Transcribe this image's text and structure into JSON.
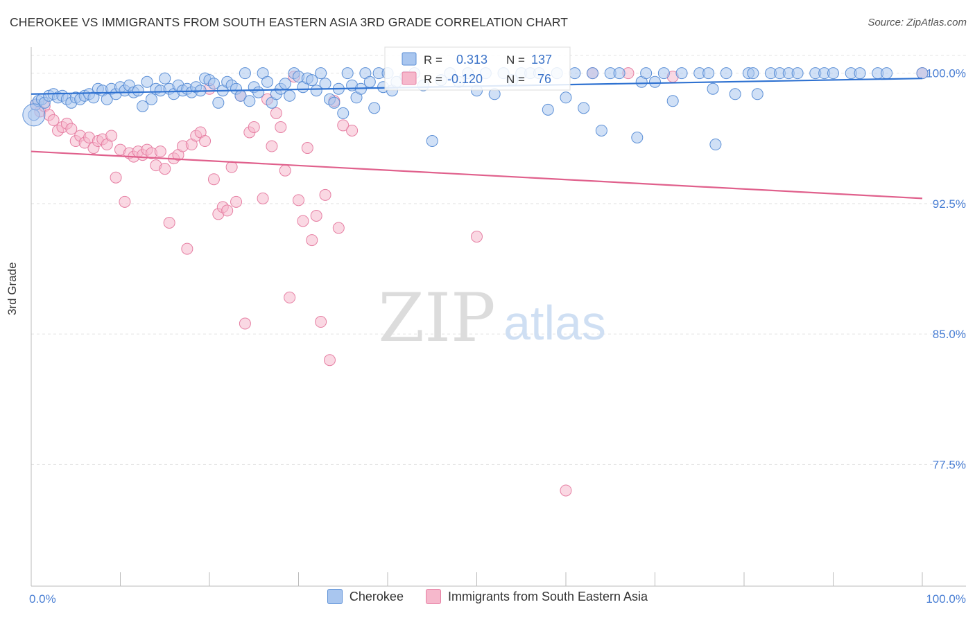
{
  "title": "CHEROKEE VS IMMIGRANTS FROM SOUTH EASTERN ASIA 3RD GRADE CORRELATION CHART",
  "source": "Source: ZipAtlas.com",
  "watermark": {
    "zip": "ZIP",
    "atlas": "atlas"
  },
  "colors": {
    "blue": "#5b8fd6",
    "blue_fill": "#a9c6ef",
    "blue_line": "#2f72d1",
    "pink": "#e67fa3",
    "pink_fill": "#f6b8cc",
    "pink_line": "#e0608c",
    "axis_label": "#4a7fd4"
  },
  "stats": [
    {
      "r_label": "R =",
      "r_value": "0.313",
      "n_label": "N =",
      "n_value": "137"
    },
    {
      "r_label": "R =",
      "r_value": "-0.120",
      "n_label": "N =",
      "n_value": "76"
    }
  ],
  "chart_data": {
    "type": "scatter",
    "title": "CHEROKEE VS IMMIGRANTS FROM SOUTH EASTERN ASIA 3RD GRADE CORRELATION CHART",
    "xlabel": "",
    "ylabel": "3rd Grade",
    "x_ticks": [
      "0.0%",
      "100.0%"
    ],
    "y_ticks": [
      "100.0%",
      "92.5%",
      "85.0%",
      "77.5%"
    ],
    "xlim": [
      0,
      100
    ],
    "ylim": [
      70.5,
      101.5
    ],
    "grid": true,
    "legend_position": "bottom",
    "series": [
      {
        "name": "Cherokee",
        "color": "#5b8fd6",
        "trend": {
          "x": [
            0,
            100
          ],
          "y": [
            98.8,
            99.7
          ]
        },
        "points": [
          [
            0.3,
            97.6
          ],
          [
            0.5,
            98.2
          ],
          [
            0.8,
            98.4
          ],
          [
            1.2,
            98.5
          ],
          [
            1.5,
            98.3
          ],
          [
            2.0,
            98.7
          ],
          [
            2.5,
            98.8
          ],
          [
            3.0,
            98.6
          ],
          [
            3.5,
            98.7
          ],
          [
            4.0,
            98.5
          ],
          [
            4.5,
            98.3
          ],
          [
            5.0,
            98.6
          ],
          [
            5.5,
            98.5
          ],
          [
            6.0,
            98.7
          ],
          [
            6.5,
            98.8
          ],
          [
            7.0,
            98.6
          ],
          [
            7.5,
            99.1
          ],
          [
            8.0,
            99.0
          ],
          [
            8.5,
            98.5
          ],
          [
            9.0,
            99.1
          ],
          [
            9.5,
            98.8
          ],
          [
            10.0,
            99.2
          ],
          [
            10.5,
            99.0
          ],
          [
            11.0,
            99.3
          ],
          [
            11.5,
            98.9
          ],
          [
            12.0,
            99.0
          ],
          [
            12.5,
            98.1
          ],
          [
            13.0,
            99.5
          ],
          [
            13.5,
            98.5
          ],
          [
            14.0,
            99.1
          ],
          [
            14.5,
            99.0
          ],
          [
            15.0,
            99.7
          ],
          [
            15.5,
            99.1
          ],
          [
            16.0,
            98.8
          ],
          [
            16.5,
            99.3
          ],
          [
            17.0,
            99.0
          ],
          [
            17.5,
            99.1
          ],
          [
            18.0,
            98.9
          ],
          [
            18.5,
            99.2
          ],
          [
            19.0,
            99.0
          ],
          [
            19.5,
            99.7
          ],
          [
            20.0,
            99.6
          ],
          [
            20.5,
            99.4
          ],
          [
            21.0,
            98.3
          ],
          [
            21.5,
            99.0
          ],
          [
            22.0,
            99.5
          ],
          [
            22.5,
            99.3
          ],
          [
            23.0,
            99.1
          ],
          [
            23.5,
            98.7
          ],
          [
            24.0,
            100.0
          ],
          [
            24.5,
            98.4
          ],
          [
            25.0,
            99.2
          ],
          [
            25.5,
            98.9
          ],
          [
            26.0,
            100.0
          ],
          [
            26.5,
            99.5
          ],
          [
            27.0,
            98.3
          ],
          [
            27.5,
            98.8
          ],
          [
            28.0,
            99.1
          ],
          [
            28.5,
            99.4
          ],
          [
            29.0,
            98.7
          ],
          [
            29.5,
            100.0
          ],
          [
            30.0,
            99.8
          ],
          [
            30.5,
            99.2
          ],
          [
            31.0,
            99.7
          ],
          [
            31.5,
            99.6
          ],
          [
            32.0,
            99.0
          ],
          [
            32.5,
            100.0
          ],
          [
            33.0,
            99.4
          ],
          [
            33.5,
            98.5
          ],
          [
            34.0,
            98.3
          ],
          [
            34.5,
            99.1
          ],
          [
            35.0,
            97.7
          ],
          [
            35.5,
            100.0
          ],
          [
            36.0,
            99.3
          ],
          [
            36.5,
            98.6
          ],
          [
            37.0,
            99.1
          ],
          [
            37.5,
            100.0
          ],
          [
            38.0,
            99.5
          ],
          [
            38.5,
            98.0
          ],
          [
            39.0,
            100.0
          ],
          [
            39.5,
            99.2
          ],
          [
            40.0,
            100.0
          ],
          [
            40.5,
            99.0
          ],
          [
            41.0,
            99.5
          ],
          [
            42.0,
            99.8
          ],
          [
            43.0,
            100.0
          ],
          [
            44.0,
            99.3
          ],
          [
            45.0,
            96.1
          ],
          [
            46.0,
            99.6
          ],
          [
            47.0,
            100.0
          ],
          [
            48.0,
            99.5
          ],
          [
            49.0,
            100.0
          ],
          [
            50.0,
            99.0
          ],
          [
            51.0,
            100.0
          ],
          [
            52.0,
            98.8
          ],
          [
            53.0,
            100.0
          ],
          [
            54.0,
            99.6
          ],
          [
            55.0,
            100.0
          ],
          [
            56.0,
            100.0
          ],
          [
            57.0,
            100.0
          ],
          [
            58.0,
            97.9
          ],
          [
            59.0,
            100.0
          ],
          [
            60.0,
            98.6
          ],
          [
            61.0,
            100.0
          ],
          [
            62.0,
            98.0
          ],
          [
            63.0,
            100.0
          ],
          [
            64.0,
            96.7
          ],
          [
            65.0,
            100.0
          ],
          [
            66.0,
            100.0
          ],
          [
            68.0,
            96.3
          ],
          [
            68.5,
            99.5
          ],
          [
            69.0,
            100.0
          ],
          [
            70.0,
            99.5
          ],
          [
            71.0,
            100.0
          ],
          [
            72.0,
            98.4
          ],
          [
            73.0,
            100.0
          ],
          [
            75.0,
            100.0
          ],
          [
            76.0,
            100.0
          ],
          [
            76.5,
            99.1
          ],
          [
            76.8,
            95.9
          ],
          [
            78.0,
            100.0
          ],
          [
            79.0,
            98.8
          ],
          [
            80.5,
            100.0
          ],
          [
            81.0,
            100.0
          ],
          [
            81.5,
            98.8
          ],
          [
            83.0,
            100.0
          ],
          [
            84.0,
            100.0
          ],
          [
            85.0,
            100.0
          ],
          [
            86.0,
            100.0
          ],
          [
            88.0,
            100.0
          ],
          [
            89.0,
            100.0
          ],
          [
            90.0,
            100.0
          ],
          [
            92.0,
            100.0
          ],
          [
            93.0,
            100.0
          ],
          [
            95.0,
            100.0
          ],
          [
            96.0,
            100.0
          ],
          [
            100.0,
            100.0
          ]
        ]
      },
      {
        "name": "Immigrants from South Eastern Asia",
        "color": "#e67fa3",
        "trend": {
          "x": [
            0,
            100
          ],
          "y": [
            95.5,
            92.8
          ]
        },
        "points": [
          [
            0.5,
            98.2
          ],
          [
            1.0,
            97.8
          ],
          [
            1.5,
            98.1
          ],
          [
            2.0,
            97.6
          ],
          [
            2.5,
            97.3
          ],
          [
            3.0,
            96.7
          ],
          [
            3.5,
            96.9
          ],
          [
            4.0,
            97.1
          ],
          [
            4.5,
            96.8
          ],
          [
            5.0,
            96.1
          ],
          [
            5.5,
            96.4
          ],
          [
            6.0,
            96.0
          ],
          [
            6.5,
            96.3
          ],
          [
            7.0,
            95.7
          ],
          [
            7.5,
            96.1
          ],
          [
            8.0,
            96.2
          ],
          [
            8.5,
            95.9
          ],
          [
            9.0,
            96.4
          ],
          [
            9.5,
            94.0
          ],
          [
            10.0,
            95.6
          ],
          [
            10.5,
            92.6
          ],
          [
            11.0,
            95.4
          ],
          [
            11.5,
            95.2
          ],
          [
            12.0,
            95.5
          ],
          [
            12.5,
            95.3
          ],
          [
            13.0,
            95.6
          ],
          [
            13.5,
            95.4
          ],
          [
            14.0,
            94.7
          ],
          [
            14.5,
            95.5
          ],
          [
            15.0,
            94.5
          ],
          [
            15.5,
            91.4
          ],
          [
            16.0,
            95.1
          ],
          [
            16.5,
            95.3
          ],
          [
            17.0,
            95.8
          ],
          [
            17.5,
            89.9
          ],
          [
            18.0,
            95.9
          ],
          [
            18.5,
            96.4
          ],
          [
            19.0,
            96.6
          ],
          [
            19.5,
            96.1
          ],
          [
            20.0,
            99.1
          ],
          [
            20.5,
            93.9
          ],
          [
            21.0,
            91.9
          ],
          [
            21.5,
            92.3
          ],
          [
            22.0,
            92.1
          ],
          [
            22.5,
            94.6
          ],
          [
            23.0,
            92.6
          ],
          [
            23.5,
            98.7
          ],
          [
            24.0,
            85.6
          ],
          [
            24.5,
            96.6
          ],
          [
            25.0,
            96.9
          ],
          [
            26.0,
            92.8
          ],
          [
            26.5,
            98.5
          ],
          [
            27.0,
            95.8
          ],
          [
            27.5,
            97.7
          ],
          [
            28.0,
            96.9
          ],
          [
            28.5,
            94.4
          ],
          [
            29.0,
            87.1
          ],
          [
            29.5,
            99.8
          ],
          [
            30.0,
            92.7
          ],
          [
            30.5,
            91.5
          ],
          [
            31.0,
            95.7
          ],
          [
            31.5,
            90.4
          ],
          [
            32.0,
            91.8
          ],
          [
            32.5,
            85.7
          ],
          [
            33.0,
            93.0
          ],
          [
            33.5,
            83.5
          ],
          [
            34.0,
            98.4
          ],
          [
            34.5,
            91.1
          ],
          [
            35.0,
            97.0
          ],
          [
            36.0,
            96.7
          ],
          [
            50.0,
            90.6
          ],
          [
            60.0,
            76.0
          ],
          [
            63.0,
            100.0
          ],
          [
            67.0,
            100.0
          ],
          [
            72.0,
            99.8
          ],
          [
            100.0,
            100.0
          ]
        ]
      }
    ]
  }
}
